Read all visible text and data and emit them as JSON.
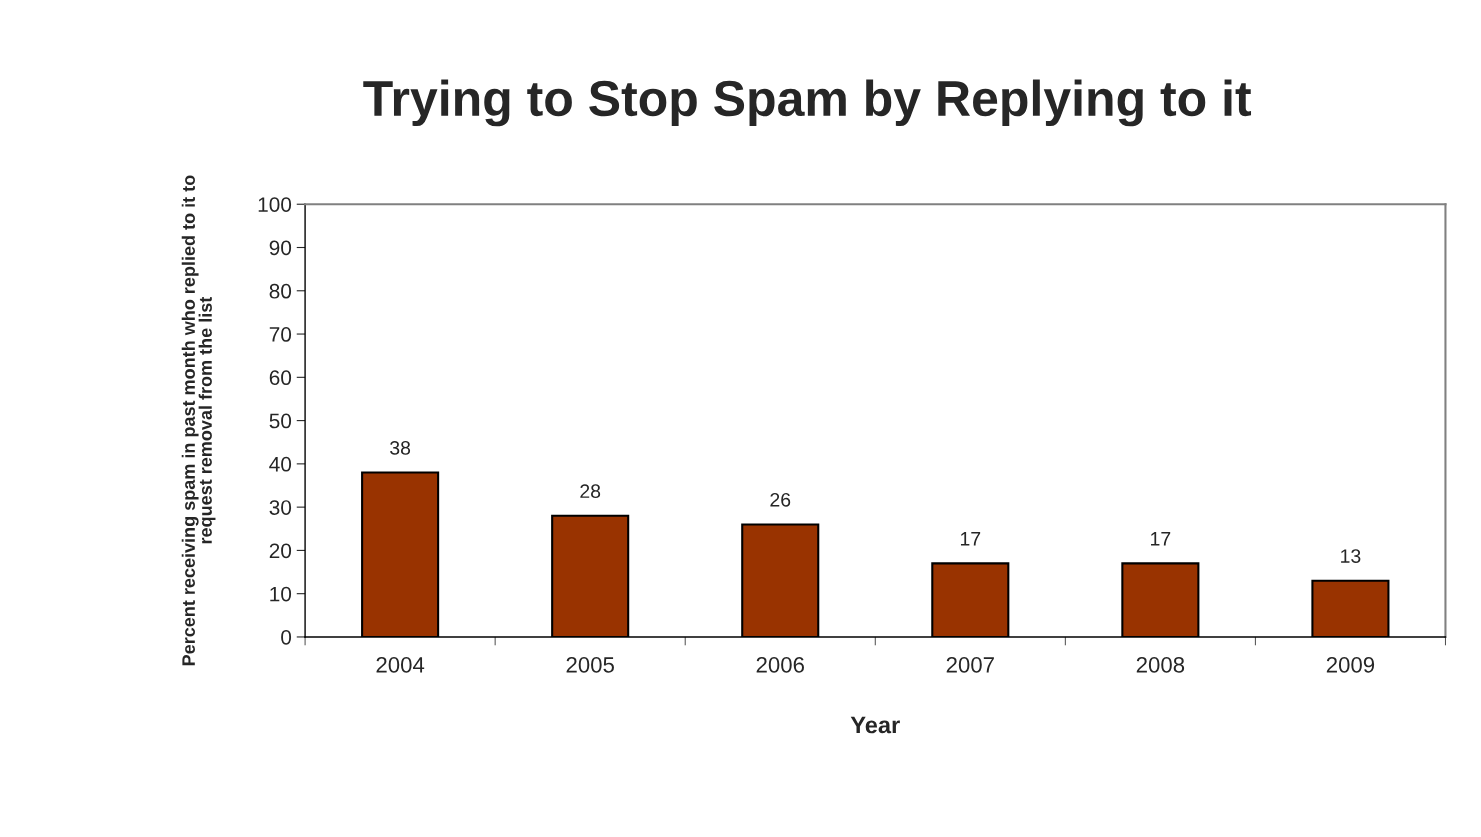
{
  "chart_data": {
    "type": "bar",
    "title": "Trying to Stop Spam by Replying to it",
    "xlabel": "Year",
    "ylabel": "Percent receiving spam in past month who replied to it to\nrequest removal from the list",
    "categories": [
      "2004",
      "2005",
      "2006",
      "2007",
      "2008",
      "2009"
    ],
    "values": [
      38,
      28,
      26,
      17,
      17,
      13
    ],
    "color": "#993300",
    "ylim": [
      0,
      100
    ],
    "yticks": [
      0,
      10,
      20,
      30,
      40,
      50,
      60,
      70,
      80,
      90,
      100
    ],
    "data_labels": true,
    "grid": false
  }
}
